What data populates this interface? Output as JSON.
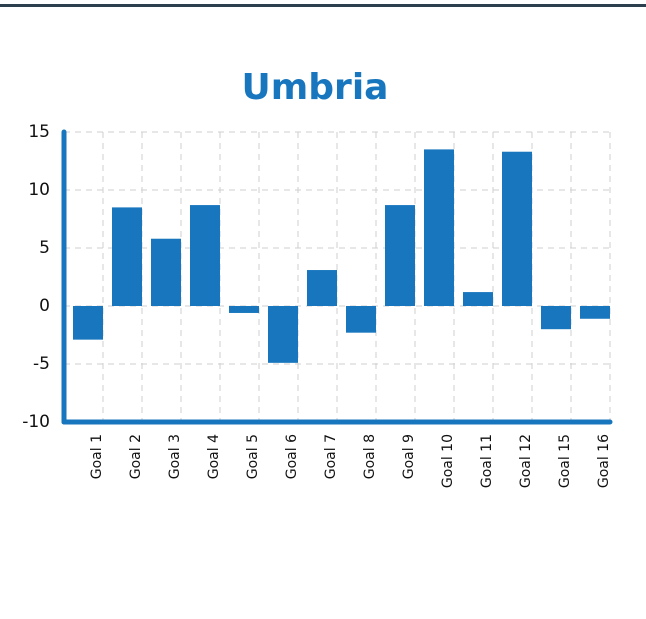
{
  "chart_data": {
    "type": "bar",
    "title": "Umbria",
    "categories": [
      "Goal 1",
      "Goal 2",
      "Goal 3",
      "Goal 4",
      "Goal 5",
      "Goal 6",
      "Goal 7",
      "Goal 8",
      "Goal 9",
      "Goal 10",
      "Goal 11",
      "Goal 12",
      "Goal 15",
      "Goal 16"
    ],
    "values": [
      -2.9,
      8.5,
      5.8,
      8.7,
      -0.6,
      -4.9,
      3.1,
      -2.3,
      8.7,
      13.5,
      1.2,
      13.3,
      -2.0,
      -1.1
    ],
    "color": "#1776bd",
    "ylim": [
      -10,
      15
    ],
    "yticks": [
      -10,
      -5,
      0,
      5,
      10,
      15
    ],
    "grid": true
  }
}
